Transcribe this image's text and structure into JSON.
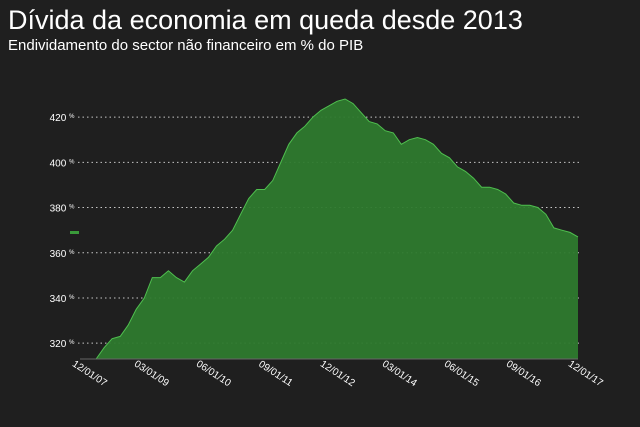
{
  "header": {
    "title": "Dívida da economia em queda desde 2013",
    "subtitle": "Endividamento do sector não financeiro em % do PIB"
  },
  "colors": {
    "background": "#1f1f1f",
    "area_fill": "#2e7a2e",
    "area_stroke": "#4fbf4f",
    "grid": "#ffffff",
    "text": "#ffffff"
  },
  "chart_data": {
    "type": "area",
    "title": "Dívida da economia em queda desde 2013",
    "subtitle": "Endividamento do sector não financeiro em % do PIB",
    "xlabel": "",
    "ylabel": "",
    "unit": "%",
    "ylim": [
      313,
      432
    ],
    "grid": true,
    "y_ticks": [
      320,
      340,
      360,
      380,
      400,
      420
    ],
    "x_ticks": [
      "12/01/07",
      "03/01/09",
      "06/01/10",
      "09/01/11",
      "12/01/12",
      "03/01/14",
      "06/01/15",
      "09/01/16",
      "12/01/17"
    ],
    "legend_marker_value": 367,
    "series": [
      {
        "values": [
          313,
          313,
          313,
          318,
          322,
          323,
          328,
          335,
          340,
          349,
          349,
          352,
          349,
          347,
          352,
          355,
          358,
          363,
          366,
          370,
          377,
          384,
          388,
          388,
          392,
          400,
          408,
          413,
          416,
          420,
          423,
          425,
          427,
          428,
          426,
          422,
          418,
          417,
          414,
          413,
          408,
          410,
          411,
          410,
          408,
          404,
          402,
          398,
          396,
          393,
          389,
          389,
          388,
          386,
          382,
          381,
          381,
          380,
          377,
          371,
          370,
          369,
          367
        ]
      }
    ]
  }
}
